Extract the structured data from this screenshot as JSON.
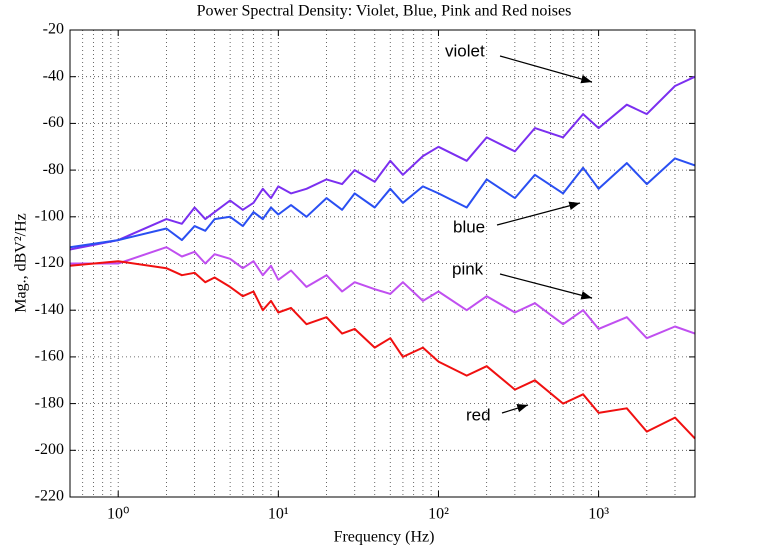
{
  "chart_data": {
    "type": "line",
    "title": "Power Spectral Density: Violet, Blue, Pink and Red noises",
    "x_label": "Frequency (Hz)",
    "y_label": "Mag., dBV²/Hz",
    "x": [
      0.5,
      1,
      2,
      2.5,
      3,
      3.5,
      4,
      5,
      6,
      7,
      8,
      9,
      10,
      12,
      15,
      20,
      25,
      30,
      40,
      50,
      60,
      80,
      100,
      150,
      200,
      300,
      400,
      600,
      800,
      1000,
      1500,
      2000,
      3000,
      4000
    ],
    "series": [
      {
        "name": "violet",
        "color": "#7b2ff0",
        "values": [
          -114,
          -110,
          -101,
          -103,
          -96,
          -101,
          -98,
          -93,
          -97,
          -94,
          -88,
          -92,
          -87,
          -90,
          -88,
          -84,
          -86,
          -80,
          -85,
          -76,
          -82,
          -74,
          -70,
          -76,
          -66,
          -72,
          -62,
          -66,
          -56,
          -62,
          -52,
          -56,
          -44,
          -40
        ]
      },
      {
        "name": "blue",
        "color": "#2a4ff2",
        "values": [
          -113,
          -110,
          -105,
          -110,
          -104,
          -106,
          -101,
          -100,
          -104,
          -98,
          -101,
          -96,
          -99,
          -95,
          -100,
          -92,
          -97,
          -90,
          -96,
          -88,
          -94,
          -87,
          -90,
          -96,
          -84,
          -92,
          -82,
          -90,
          -79,
          -88,
          -77,
          -86,
          -75,
          -78
        ]
      },
      {
        "name": "pink",
        "color": "#c04ff0",
        "values": [
          -120,
          -120,
          -113,
          -117,
          -115,
          -120,
          -116,
          -118,
          -122,
          -119,
          -125,
          -121,
          -127,
          -123,
          -130,
          -125,
          -132,
          -128,
          -131,
          -133,
          -128,
          -136,
          -132,
          -140,
          -134,
          -141,
          -137,
          -146,
          -140,
          -148,
          -143,
          -152,
          -147,
          -150
        ]
      },
      {
        "name": "red",
        "color": "#f01010",
        "values": [
          -121,
          -119,
          -122,
          -125,
          -124,
          -128,
          -126,
          -130,
          -134,
          -132,
          -140,
          -136,
          -141,
          -139,
          -146,
          -143,
          -150,
          -148,
          -156,
          -152,
          -160,
          -156,
          -162,
          -168,
          -164,
          -174,
          -170,
          -180,
          -176,
          -184,
          -182,
          -192,
          -186,
          -195
        ]
      }
    ],
    "annotations": [
      "violet",
      "blue",
      "pink",
      "red"
    ],
    "x_log": true,
    "xlim": [
      0.5,
      4000
    ],
    "xticks": [
      {
        "value": 1,
        "label": "10⁰"
      },
      {
        "value": 10,
        "label": "10¹"
      },
      {
        "value": 100,
        "label": "10²"
      },
      {
        "value": 1000,
        "label": "10³"
      }
    ],
    "ylim": [
      -220,
      -20
    ],
    "yticks": [
      -220,
      -200,
      -180,
      -160,
      -140,
      -120,
      -100,
      -80,
      -60,
      -40,
      -20
    ],
    "grid": true
  }
}
